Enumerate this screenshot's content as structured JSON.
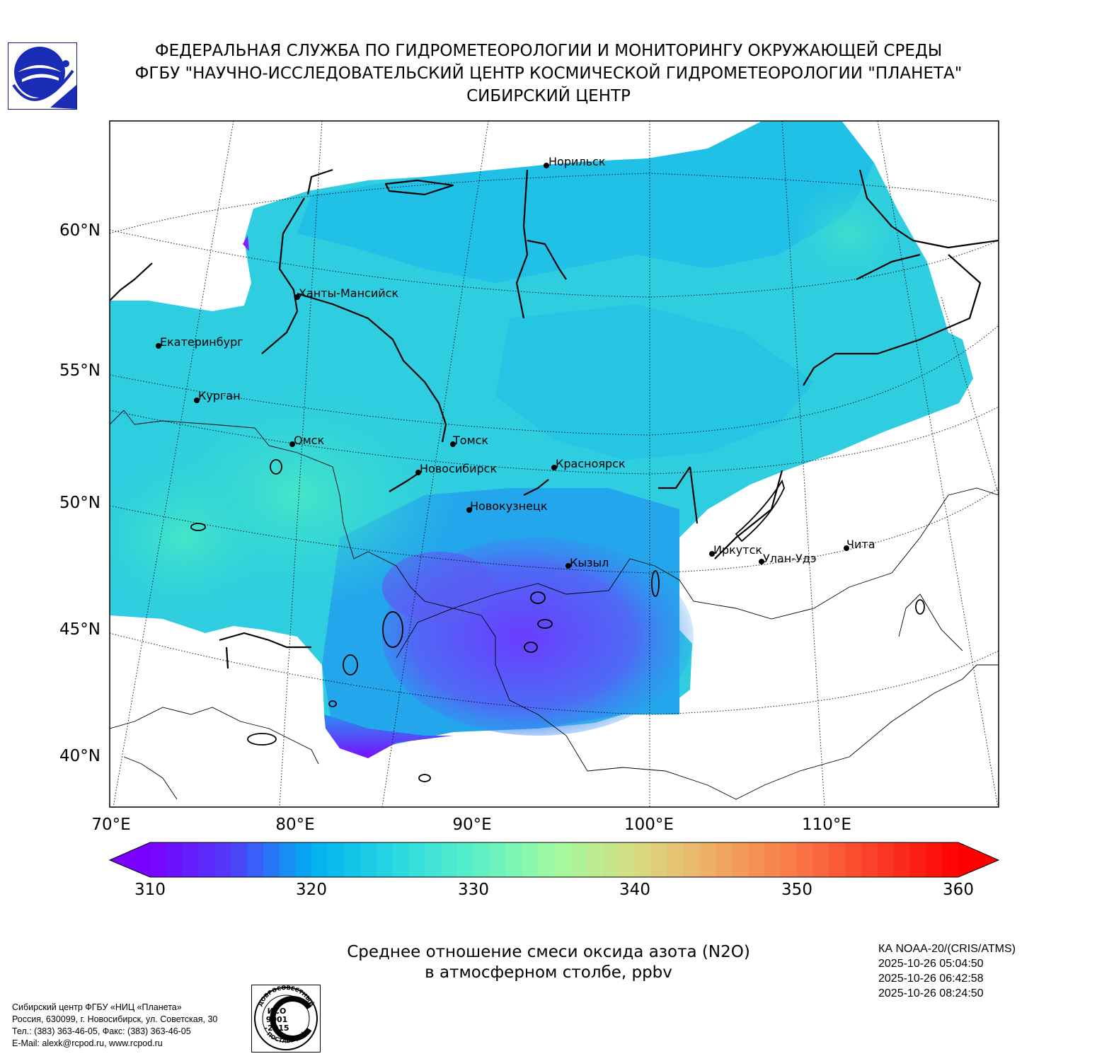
{
  "header": {
    "line1": "ФЕДЕРАЛЬНАЯ СЛУЖБА ПО ГИДРОМЕТЕОРОЛОГИИ И МОНИТОРИНГУ ОКРУЖАЮЩЕЙ СРЕДЫ",
    "line2": "ФГБУ \"НАУЧНО-ИССЛЕДОВАТЕЛЬСКИЙ ЦЕНТР КОСМИЧЕСКОЙ ГИДРОМЕТЕОРОЛОГИИ \"ПЛАНЕТА\"",
    "line3": "СИБИРСКИЙ ЦЕНТР"
  },
  "map": {
    "lat_labels": [
      "60°N",
      "55°N",
      "50°N",
      "45°N",
      "40°N"
    ],
    "lon_labels": [
      "70°E",
      "80°E",
      "90°E",
      "100°E",
      "110°E"
    ],
    "cities": [
      {
        "name": "Норильск"
      },
      {
        "name": "Ханты-Мансийск"
      },
      {
        "name": "Екатеринбург"
      },
      {
        "name": "Курган"
      },
      {
        "name": "Омск"
      },
      {
        "name": "Томск"
      },
      {
        "name": "Новосибирск"
      },
      {
        "name": "Красноярск"
      },
      {
        "name": "Новокузнецк"
      },
      {
        "name": "Кызыл"
      },
      {
        "name": "Иркутск"
      },
      {
        "name": "Улан-Удэ"
      },
      {
        "name": "Чита"
      }
    ]
  },
  "colorbar": {
    "min": 310,
    "max": 360,
    "ticks": [
      "310",
      "320",
      "330",
      "340",
      "350",
      "360"
    ],
    "colors": {
      "low": "#7a00ff",
      "mid_low": "#00b0f0",
      "mid": "#50f0c8",
      "mid_high": "#f0b070",
      "high": "#ff0000"
    }
  },
  "title": {
    "line1": "Среднее отношение смеси оксида азота (N2O)",
    "line2": "в атмосферном столбе, ppbv"
  },
  "satellite": {
    "name": "КА NOAA-20/(CRIS/ATMS)",
    "passes": [
      "2025-10-26 05:04:50",
      "2025-10-26 06:42:58",
      "2025-10-26 08:24:50"
    ]
  },
  "footer": {
    "org": "Сибирский центр ФГБУ «НИЦ «Планета»",
    "address": "Россия, 630099, г. Новосибирск, ул. Советская, 30",
    "phone": "Тел.: (383) 363-46-05, Факс: (383) 363-46-05",
    "email": "E-Mail: alexk@rcpod.ru, www.rcpod.ru"
  },
  "iso_badge": {
    "top": "ДОБРОСОВЕСТНЫЙ",
    "mid1": "ИСО",
    "mid2": "9001",
    "mid3": "-2015",
    "bottom": "ПОСТАВЩИК"
  }
}
